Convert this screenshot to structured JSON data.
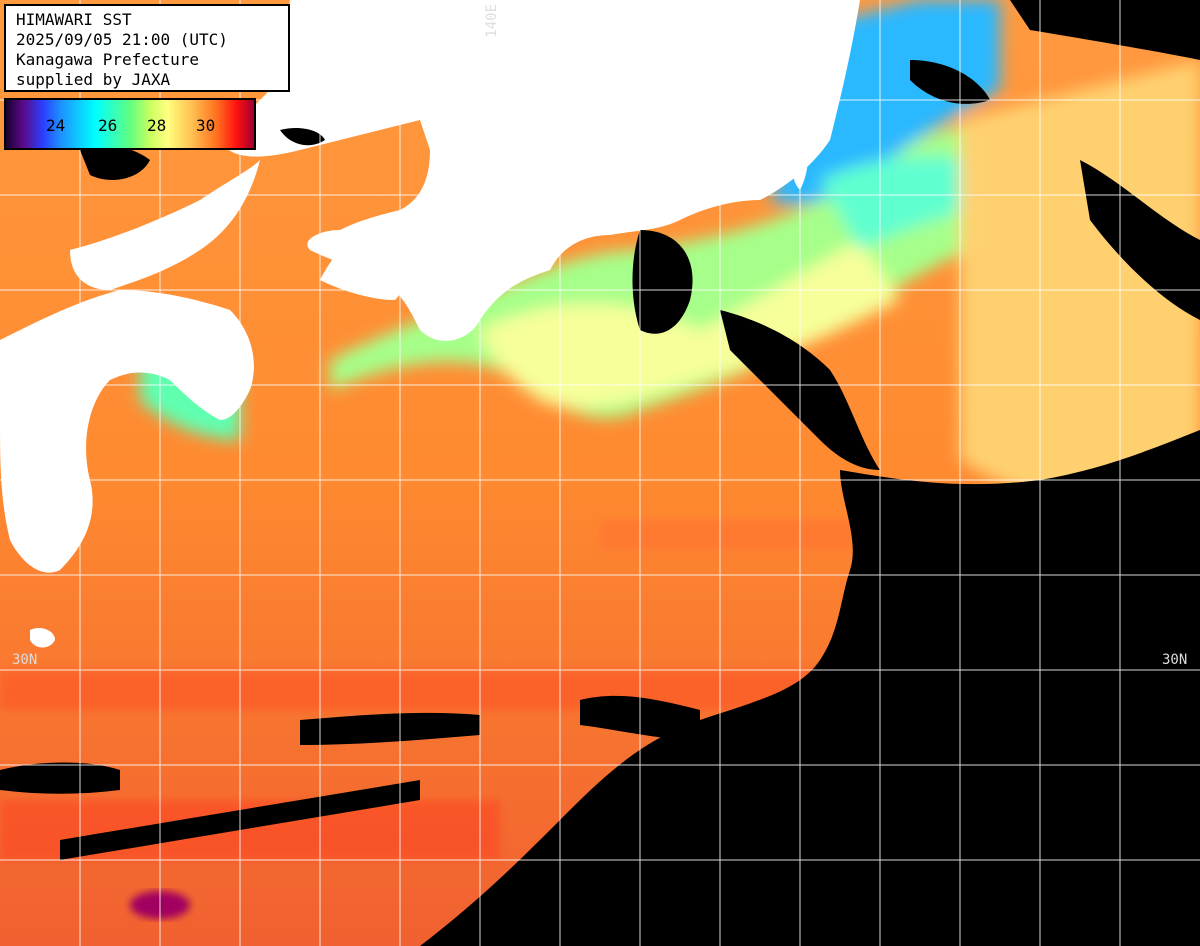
{
  "header": {
    "line1": "HIMAWARI SST",
    "line2": "2025/09/05 21:00 (UTC)",
    "line3": "Kanagawa Prefecture",
    "line4": "supplied by JAXA"
  },
  "legend": {
    "ticks": [
      "24",
      "26",
      "28",
      "30"
    ]
  },
  "grid_labels": {
    "lat_left": "30N",
    "lat_right": "30N",
    "lon_top": "140E"
  },
  "colors": {
    "land": "#ffffff",
    "cloud": "#000000",
    "grid": "#ffffff"
  }
}
